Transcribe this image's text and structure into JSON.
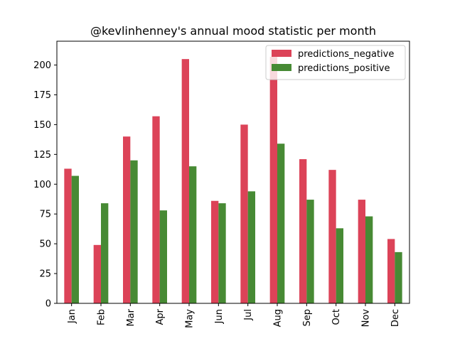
{
  "chart_data": {
    "type": "bar",
    "title": "@kevlinhenney's annual mood statistic per month",
    "xlabel": "",
    "ylabel": "",
    "categories": [
      "Jan",
      "Feb",
      "Mar",
      "Apr",
      "May",
      "Jun",
      "Jul",
      "Aug",
      "Sep",
      "Oct",
      "Nov",
      "Dec"
    ],
    "series": [
      {
        "name": "predictions_negative",
        "color": "#dc4358",
        "values": [
          113,
          49,
          140,
          157,
          205,
          86,
          150,
          207,
          121,
          112,
          87,
          54
        ]
      },
      {
        "name": "predictions_positive",
        "color": "#478a34",
        "values": [
          107,
          84,
          120,
          78,
          115,
          84,
          94,
          134,
          87,
          63,
          73,
          43
        ]
      }
    ],
    "ylim": [
      0,
      220
    ],
    "yticks": [
      0,
      25,
      50,
      75,
      100,
      125,
      150,
      175,
      200
    ],
    "grid": false,
    "legend_position": "top-right"
  }
}
